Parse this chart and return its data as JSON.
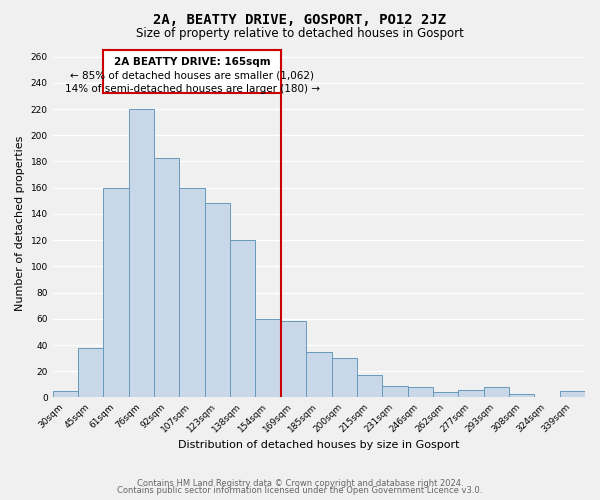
{
  "title": "2A, BEATTY DRIVE, GOSPORT, PO12 2JZ",
  "subtitle": "Size of property relative to detached houses in Gosport",
  "xlabel": "Distribution of detached houses by size in Gosport",
  "ylabel": "Number of detached properties",
  "bar_labels": [
    "30sqm",
    "45sqm",
    "61sqm",
    "76sqm",
    "92sqm",
    "107sqm",
    "123sqm",
    "138sqm",
    "154sqm",
    "169sqm",
    "185sqm",
    "200sqm",
    "215sqm",
    "231sqm",
    "246sqm",
    "262sqm",
    "277sqm",
    "293sqm",
    "308sqm",
    "324sqm",
    "339sqm"
  ],
  "bar_values": [
    5,
    38,
    160,
    220,
    183,
    160,
    148,
    120,
    60,
    58,
    35,
    30,
    17,
    9,
    8,
    4,
    6,
    8,
    3,
    0,
    5
  ],
  "bar_color": "#c8d8e8",
  "bar_edge_color": "#6699bb",
  "ylim": [
    0,
    265
  ],
  "yticks": [
    0,
    20,
    40,
    60,
    80,
    100,
    120,
    140,
    160,
    180,
    200,
    220,
    240,
    260
  ],
  "vline_color": "#cc0000",
  "annotation_title": "2A BEATTY DRIVE: 165sqm",
  "annotation_line1": "← 85% of detached houses are smaller (1,062)",
  "annotation_line2": "14% of semi-detached houses are larger (180) →",
  "footer_line1": "Contains HM Land Registry data © Crown copyright and database right 2024.",
  "footer_line2": "Contains public sector information licensed under the Open Government Licence v3.0.",
  "background_color": "#f0f0f0",
  "plot_bg_color": "#f0f0f0",
  "grid_color": "#ffffff",
  "title_fontsize": 10,
  "subtitle_fontsize": 8.5,
  "axis_label_fontsize": 8,
  "tick_fontsize": 6.5,
  "annotation_fontsize": 7.5,
  "footer_fontsize": 6
}
